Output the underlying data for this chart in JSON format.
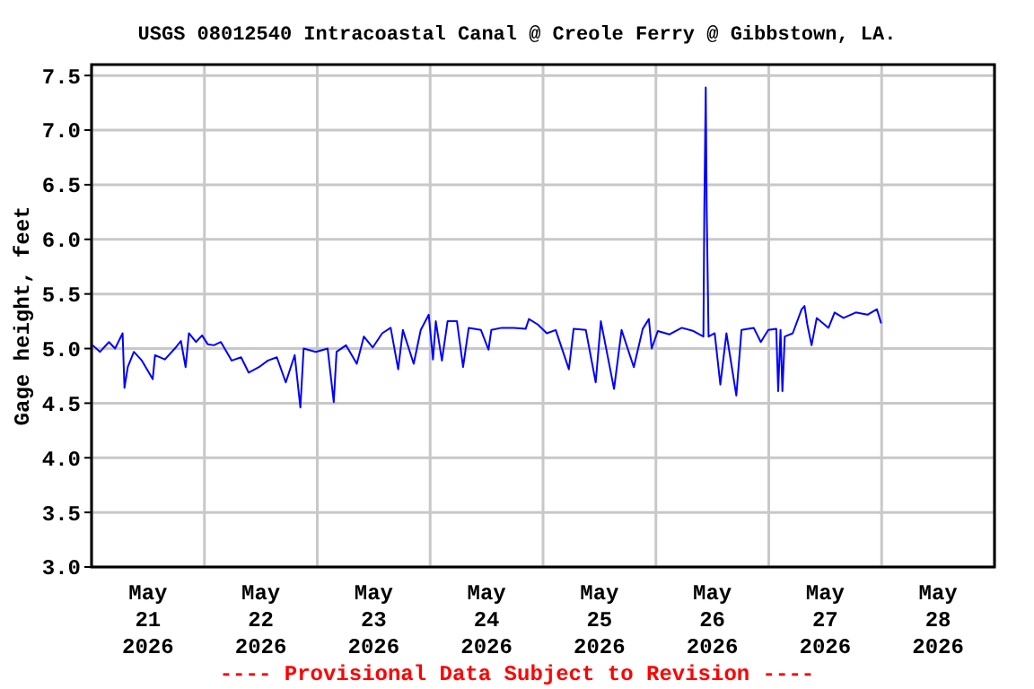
{
  "chart_data": {
    "type": "line",
    "title": "USGS 08012540 Intracoastal Canal @ Creole Ferry @ Gibbstown, LA.",
    "ylabel": "Gage height, feet",
    "annotations": [
      "---- Provisional Data Subject to Revision ----"
    ],
    "xlim": [
      "2026-05-21T00:00",
      "2026-05-29T00:00"
    ],
    "xticks": [
      {
        "value": "2026-05-21T00:00",
        "label": null
      },
      {
        "value": "2026-05-21T12:00",
        "label": "May\n21\n2026"
      },
      {
        "value": "2026-05-22T00:00",
        "label": null
      },
      {
        "value": "2026-05-22T12:00",
        "label": "May\n22\n2026"
      },
      {
        "value": "2026-05-23T00:00",
        "label": null
      },
      {
        "value": "2026-05-23T12:00",
        "label": "May\n23\n2026"
      },
      {
        "value": "2026-05-24T00:00",
        "label": null
      },
      {
        "value": "2026-05-24T12:00",
        "label": "May\n24\n2026"
      },
      {
        "value": "2026-05-25T00:00",
        "label": null
      },
      {
        "value": "2026-05-25T12:00",
        "label": "May\n25\n2026"
      },
      {
        "value": "2026-05-26T00:00",
        "label": null
      },
      {
        "value": "2026-05-26T12:00",
        "label": "May\n26\n2026"
      },
      {
        "value": "2026-05-27T00:00",
        "label": null
      },
      {
        "value": "2026-05-27T12:00",
        "label": "May\n27\n2026"
      },
      {
        "value": "2026-05-28T00:00",
        "label": null
      },
      {
        "value": "2026-05-28T12:00",
        "label": "May\n28\n2026"
      },
      {
        "value": "2026-05-29T00:00",
        "label": null
      }
    ],
    "ylim": [
      3.0,
      7.6
    ],
    "yticks": [
      {
        "value": 3,
        "label": "3.0"
      },
      3.5,
      {
        "value": 4,
        "label": "4.0"
      },
      4.5,
      {
        "value": 5,
        "label": "5.0"
      },
      5.5,
      {
        "value": 6,
        "label": "6.0"
      },
      6.5,
      {
        "value": 7,
        "label": "7.0"
      },
      7.5
    ],
    "grid": true,
    "marker": "none",
    "line_style": "solid",
    "series": [
      {
        "color": "#0000ff",
        "x": [
          "2026-05-21T00:15",
          "2026-05-21T01:48",
          "2026-05-21T03:42",
          "2026-05-21T05:00",
          "2026-05-21T06:36",
          "2026-05-21T07:00",
          "2026-05-21T07:42",
          "2026-05-21T09:00",
          "2026-05-21T10:42",
          "2026-05-21T13:00",
          "2026-05-21T13:30",
          "2026-05-21T15:36",
          "2026-05-21T17:42",
          "2026-05-21T19:00",
          "2026-05-21T20:00",
          "2026-05-21T20:42",
          "2026-05-21T22:12",
          "2026-05-21T23:30",
          "2026-05-22T00:42",
          "2026-05-22T02:00",
          "2026-05-22T03:30",
          "2026-05-22T05:48",
          "2026-05-22T07:48",
          "2026-05-22T09:24",
          "2026-05-22T11:36",
          "2026-05-22T13:30",
          "2026-05-22T15:24",
          "2026-05-22T17:18",
          "2026-05-22T19:12",
          "2026-05-22T20:24",
          "2026-05-22T21:06",
          "2026-05-22T23:42",
          "2026-05-23T02:12",
          "2026-05-23T03:30",
          "2026-05-23T04:06",
          "2026-05-23T06:06",
          "2026-05-23T08:24",
          "2026-05-23T09:54",
          "2026-05-23T11:48",
          "2026-05-23T13:48",
          "2026-05-23T15:36",
          "2026-05-23T17:12",
          "2026-05-23T18:12",
          "2026-05-23T20:30",
          "2026-05-23T22:00",
          "2026-05-23T23:42",
          "2026-05-24T00:36",
          "2026-05-24T01:12",
          "2026-05-24T02:30",
          "2026-05-24T03:42",
          "2026-05-24T05:42",
          "2026-05-24T07:00",
          "2026-05-24T08:12",
          "2026-05-24T10:48",
          "2026-05-24T12:24",
          "2026-05-24T13:00",
          "2026-05-24T15:12",
          "2026-05-24T17:48",
          "2026-05-24T20:18",
          "2026-05-24T21:00",
          "2026-05-24T22:54",
          "2026-05-25T00:48",
          "2026-05-25T02:42",
          "2026-05-25T05:30",
          "2026-05-25T06:30",
          "2026-05-25T09:06",
          "2026-05-25T11:12",
          "2026-05-25T12:18",
          "2026-05-25T15:06",
          "2026-05-25T16:42",
          "2026-05-25T19:18",
          "2026-05-25T21:12",
          "2026-05-25T22:30",
          "2026-05-25T23:06",
          "2026-05-26T00:24",
          "2026-05-26T02:54",
          "2026-05-26T05:30",
          "2026-05-26T08:00",
          "2026-05-26T10:06",
          "2026-05-26T10:18",
          "2026-05-26T10:36",
          "2026-05-26T10:48",
          "2026-05-26T11:12",
          "2026-05-26T12:30",
          "2026-05-26T13:42",
          "2026-05-26T15:00",
          "2026-05-26T17:06",
          "2026-05-26T18:12",
          "2026-05-26T20:48",
          "2026-05-26T22:18",
          "2026-05-26T23:54",
          "2026-05-27T01:36",
          "2026-05-27T02:00",
          "2026-05-27T02:30",
          "2026-05-27T02:54",
          "2026-05-27T03:24",
          "2026-05-27T05:06",
          "2026-05-27T07:00",
          "2026-05-27T07:36",
          "2026-05-27T08:12",
          "2026-05-27T09:06",
          "2026-05-27T10:12",
          "2026-05-27T12:42",
          "2026-05-27T14:00",
          "2026-05-27T15:54",
          "2026-05-27T18:30",
          "2026-05-27T21:00",
          "2026-05-27T23:00",
          "2026-05-27T23:54"
        ],
        "values": [
          5.03,
          4.97,
          5.06,
          5.0,
          5.14,
          4.64,
          4.83,
          4.97,
          4.89,
          4.72,
          4.94,
          4.9,
          5.0,
          5.07,
          4.83,
          5.14,
          5.06,
          5.12,
          5.04,
          5.03,
          5.06,
          4.89,
          4.92,
          4.78,
          4.83,
          4.89,
          4.92,
          4.69,
          4.94,
          4.46,
          5.0,
          4.97,
          5.0,
          4.51,
          4.97,
          5.03,
          4.86,
          5.11,
          5.01,
          5.14,
          5.19,
          4.81,
          5.17,
          4.86,
          5.17,
          5.31,
          4.9,
          5.25,
          4.89,
          5.25,
          5.25,
          4.83,
          5.19,
          5.17,
          4.99,
          5.17,
          5.19,
          5.19,
          5.18,
          5.27,
          5.22,
          5.14,
          5.17,
          4.81,
          5.18,
          5.17,
          4.69,
          5.25,
          4.63,
          5.17,
          4.83,
          5.18,
          5.27,
          5.0,
          5.16,
          5.13,
          5.19,
          5.16,
          5.11,
          6.28,
          7.39,
          6.28,
          5.11,
          5.14,
          4.67,
          5.14,
          4.57,
          5.17,
          5.19,
          5.06,
          5.17,
          5.18,
          4.61,
          5.17,
          4.61,
          5.11,
          5.14,
          5.36,
          5.39,
          5.22,
          5.03,
          5.28,
          5.19,
          5.33,
          5.28,
          5.33,
          5.31,
          5.36,
          5.23
        ]
      }
    ]
  }
}
